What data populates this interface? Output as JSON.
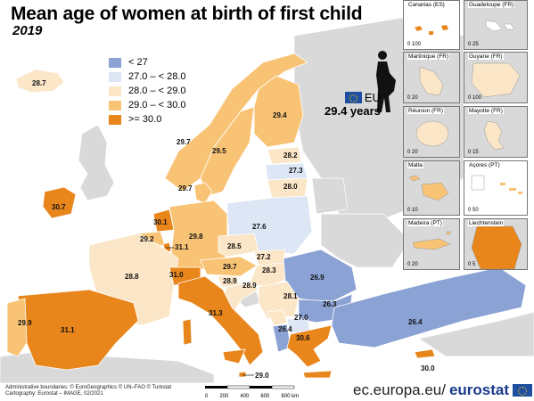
{
  "title": "Mean age of women at birth of first child",
  "year": "2019",
  "colors": {
    "c1": "#8aa2d4",
    "c2": "#dce6f5",
    "c3": "#fbe6c7",
    "c4": "#f8c374",
    "c5": "#e8861c",
    "nodata": "#d9d9d9",
    "sea": "#ffffff"
  },
  "legend": [
    {
      "label": "< 27",
      "color": "#8aa2d4"
    },
    {
      "label": "27.0 – < 28.0",
      "color": "#dce6f5"
    },
    {
      "label": "28.0 – < 29.0",
      "color": "#fbe6c7"
    },
    {
      "label": "29.0 – < 30.0",
      "color": "#f8c374"
    },
    {
      "label": ">= 30.0",
      "color": "#e8861c"
    }
  ],
  "eu": {
    "label": "EU",
    "value": "29.4 years"
  },
  "country_values": {
    "iceland": "28.7",
    "ireland": "30.7",
    "norway": "29.7",
    "sweden": "29.5",
    "finland": "29.4",
    "estonia": "28.2",
    "latvia": "27.3",
    "lithuania": "28.0",
    "denmark": "29.7",
    "netherlands": "30.1",
    "belgium": "29.2",
    "luxembourg": "31.1",
    "germany": "29.8",
    "poland": "27.6",
    "czechia": "28.5",
    "slovakia": "27.2",
    "austria": "29.7",
    "hungary": "28.3",
    "slovenia": "28.9",
    "croatia": "28.9",
    "france": "28.8",
    "switzerland": "31.0",
    "italy": "31.3",
    "romania": "26.9",
    "serbia": "28.1",
    "bulgaria": "26.3",
    "montenegro": "27.0",
    "albania": "26.4",
    "greece": "30.6",
    "turkey": "26.4",
    "spain": "31.1",
    "portugal": "29.9",
    "malta": "29.0",
    "cyprus": "30.0"
  },
  "insets": [
    {
      "title": "Canarias (ES)",
      "scale": "0  100"
    },
    {
      "title": "Guadeloupe (FR)",
      "scale": "0  25"
    },
    {
      "title": "Martinique (FR)",
      "scale": "0  20"
    },
    {
      "title": "Guyane (FR)",
      "scale": "0  100"
    },
    {
      "title": "Réunion (FR)",
      "scale": "0  20"
    },
    {
      "title": "Mayotte (FR)",
      "scale": "0  15"
    },
    {
      "title": "Malta",
      "scale": "0  10"
    },
    {
      "title": "Açores (PT)",
      "scale": "0  50"
    },
    {
      "title": "Madeira (PT)",
      "scale": "0  20"
    },
    {
      "title": "Liechtenstein",
      "scale": "0  5"
    }
  ],
  "credits": {
    "line1": "Administrative boundaries: © EuroGeographics © UN–FAO © Turkstat",
    "line2": "Cartography: Eurostat – IMAGE, 02/2021"
  },
  "scalebar": [
    "0",
    "200",
    "400",
    "600",
    "800 km"
  ],
  "brand": {
    "prefix": "ec.europa.eu/",
    "name": "eurostat"
  }
}
